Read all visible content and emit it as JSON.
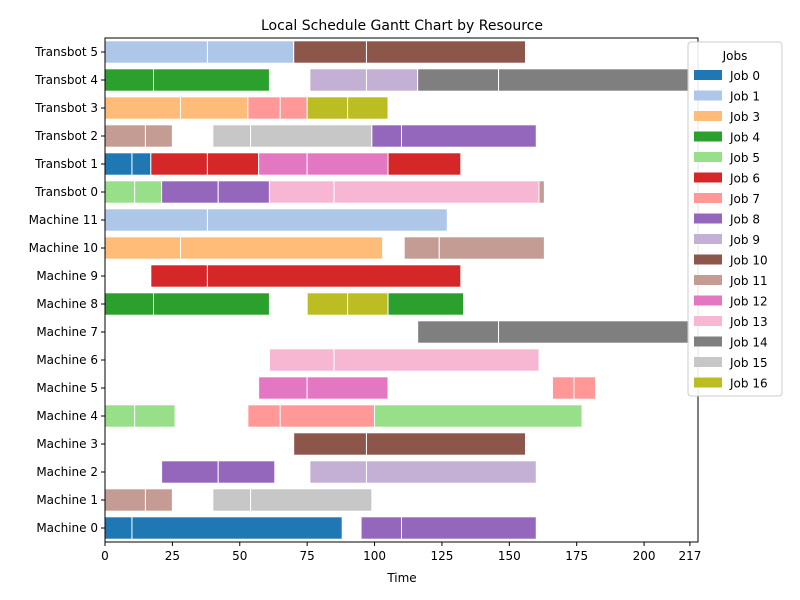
{
  "chart_data": {
    "type": "gantt",
    "title": "Local Schedule Gantt Chart by Resource",
    "xlabel": "Time",
    "ylabel": "",
    "xlim": [
      0,
      220
    ],
    "xticks": [
      0,
      25,
      50,
      75,
      100,
      125,
      150,
      175,
      200,
      217
    ],
    "grid": false,
    "legend": {
      "title": "Jobs",
      "placement": "upper-right"
    },
    "resources": [
      "Machine 0",
      "Machine 1",
      "Machine 2",
      "Machine 3",
      "Machine 4",
      "Machine 5",
      "Machine 6",
      "Machine 7",
      "Machine 8",
      "Machine 9",
      "Machine 10",
      "Machine 11",
      "Transbot 0",
      "Transbot 1",
      "Transbot 2",
      "Transbot 3",
      "Transbot 4",
      "Transbot 5"
    ],
    "jobs": [
      {
        "name": "Job 0",
        "color": "#1f77b4"
      },
      {
        "name": "Job 1",
        "color": "#aec7e8"
      },
      {
        "name": "Job 3",
        "color": "#ffbb78"
      },
      {
        "name": "Job 4",
        "color": "#2ca02c"
      },
      {
        "name": "Job 5",
        "color": "#98df8a"
      },
      {
        "name": "Job 6",
        "color": "#d62728"
      },
      {
        "name": "Job 7",
        "color": "#ff9896"
      },
      {
        "name": "Job 8",
        "color": "#9467bd"
      },
      {
        "name": "Job 9",
        "color": "#c5b0d5"
      },
      {
        "name": "Job 10",
        "color": "#8c564b"
      },
      {
        "name": "Job 11",
        "color": "#c49c94"
      },
      {
        "name": "Job 12",
        "color": "#e377c2"
      },
      {
        "name": "Job 13",
        "color": "#f7b6d2"
      },
      {
        "name": "Job 14",
        "color": "#7f7f7f"
      },
      {
        "name": "Job 15",
        "color": "#c7c7c7"
      },
      {
        "name": "Job 16",
        "color": "#bcbd22"
      }
    ],
    "tasks": [
      {
        "resource": "Machine 0",
        "job": "Job 0",
        "start": 0,
        "end": 10
      },
      {
        "resource": "Machine 0",
        "job": "Job 0",
        "start": 10,
        "end": 88
      },
      {
        "resource": "Machine 0",
        "job": "Job 8",
        "start": 95,
        "end": 110
      },
      {
        "resource": "Machine 0",
        "job": "Job 8",
        "start": 110,
        "end": 160
      },
      {
        "resource": "Machine 1",
        "job": "Job 11",
        "start": 0,
        "end": 15
      },
      {
        "resource": "Machine 1",
        "job": "Job 11",
        "start": 15,
        "end": 25
      },
      {
        "resource": "Machine 1",
        "job": "Job 15",
        "start": 40,
        "end": 54
      },
      {
        "resource": "Machine 1",
        "job": "Job 15",
        "start": 54,
        "end": 99
      },
      {
        "resource": "Machine 2",
        "job": "Job 8",
        "start": 21,
        "end": 42
      },
      {
        "resource": "Machine 2",
        "job": "Job 8",
        "start": 42,
        "end": 63
      },
      {
        "resource": "Machine 2",
        "job": "Job 9",
        "start": 76,
        "end": 97
      },
      {
        "resource": "Machine 2",
        "job": "Job 9",
        "start": 97,
        "end": 160
      },
      {
        "resource": "Machine 3",
        "job": "Job 10",
        "start": 70,
        "end": 97
      },
      {
        "resource": "Machine 3",
        "job": "Job 10",
        "start": 97,
        "end": 156
      },
      {
        "resource": "Machine 4",
        "job": "Job 5",
        "start": 0,
        "end": 11
      },
      {
        "resource": "Machine 4",
        "job": "Job 5",
        "start": 11,
        "end": 26
      },
      {
        "resource": "Machine 4",
        "job": "Job 7",
        "start": 53,
        "end": 65
      },
      {
        "resource": "Machine 4",
        "job": "Job 7",
        "start": 65,
        "end": 100
      },
      {
        "resource": "Machine 4",
        "job": "Job 5",
        "start": 100,
        "end": 177
      },
      {
        "resource": "Machine 5",
        "job": "Job 12",
        "start": 57,
        "end": 75
      },
      {
        "resource": "Machine 5",
        "job": "Job 12",
        "start": 75,
        "end": 105
      },
      {
        "resource": "Machine 5",
        "job": "Job 7",
        "start": 166,
        "end": 174
      },
      {
        "resource": "Machine 5",
        "job": "Job 7",
        "start": 174,
        "end": 182
      },
      {
        "resource": "Machine 6",
        "job": "Job 13",
        "start": 61,
        "end": 85
      },
      {
        "resource": "Machine 6",
        "job": "Job 13",
        "start": 85,
        "end": 161
      },
      {
        "resource": "Machine 7",
        "job": "Job 14",
        "start": 116,
        "end": 146
      },
      {
        "resource": "Machine 7",
        "job": "Job 14",
        "start": 146,
        "end": 217
      },
      {
        "resource": "Machine 8",
        "job": "Job 4",
        "start": 0,
        "end": 18
      },
      {
        "resource": "Machine 8",
        "job": "Job 4",
        "start": 18,
        "end": 61
      },
      {
        "resource": "Machine 8",
        "job": "Job 16",
        "start": 75,
        "end": 90
      },
      {
        "resource": "Machine 8",
        "job": "Job 16",
        "start": 90,
        "end": 105
      },
      {
        "resource": "Machine 8",
        "job": "Job 4",
        "start": 105,
        "end": 133
      },
      {
        "resource": "Machine 9",
        "job": "Job 6",
        "start": 17,
        "end": 38
      },
      {
        "resource": "Machine 9",
        "job": "Job 6",
        "start": 38,
        "end": 132
      },
      {
        "resource": "Machine 10",
        "job": "Job 3",
        "start": 0,
        "end": 28
      },
      {
        "resource": "Machine 10",
        "job": "Job 3",
        "start": 28,
        "end": 103
      },
      {
        "resource": "Machine 10",
        "job": "Job 11",
        "start": 111,
        "end": 124
      },
      {
        "resource": "Machine 10",
        "job": "Job 11",
        "start": 124,
        "end": 163
      },
      {
        "resource": "Machine 11",
        "job": "Job 1",
        "start": 0,
        "end": 38
      },
      {
        "resource": "Machine 11",
        "job": "Job 1",
        "start": 38,
        "end": 127
      },
      {
        "resource": "Transbot 0",
        "job": "Job 5",
        "start": 0,
        "end": 11
      },
      {
        "resource": "Transbot 0",
        "job": "Job 5",
        "start": 11,
        "end": 21
      },
      {
        "resource": "Transbot 0",
        "job": "Job 8",
        "start": 21,
        "end": 42
      },
      {
        "resource": "Transbot 0",
        "job": "Job 8",
        "start": 42,
        "end": 61
      },
      {
        "resource": "Transbot 0",
        "job": "Job 13",
        "start": 61,
        "end": 85
      },
      {
        "resource": "Transbot 0",
        "job": "Job 13",
        "start": 85,
        "end": 161
      },
      {
        "resource": "Transbot 0",
        "job": "Job 11",
        "start": 161,
        "end": 163
      },
      {
        "resource": "Transbot 1",
        "job": "Job 0",
        "start": 0,
        "end": 10
      },
      {
        "resource": "Transbot 1",
        "job": "Job 0",
        "start": 10,
        "end": 17
      },
      {
        "resource": "Transbot 1",
        "job": "Job 6",
        "start": 17,
        "end": 38
      },
      {
        "resource": "Transbot 1",
        "job": "Job 6",
        "start": 38,
        "end": 57
      },
      {
        "resource": "Transbot 1",
        "job": "Job 12",
        "start": 57,
        "end": 75
      },
      {
        "resource": "Transbot 1",
        "job": "Job 12",
        "start": 75,
        "end": 105
      },
      {
        "resource": "Transbot 1",
        "job": "Job 6",
        "start": 105,
        "end": 132
      },
      {
        "resource": "Transbot 2",
        "job": "Job 11",
        "start": 0,
        "end": 15
      },
      {
        "resource": "Transbot 2",
        "job": "Job 11",
        "start": 15,
        "end": 25
      },
      {
        "resource": "Transbot 2",
        "job": "Job 15",
        "start": 40,
        "end": 54
      },
      {
        "resource": "Transbot 2",
        "job": "Job 15",
        "start": 54,
        "end": 99
      },
      {
        "resource": "Transbot 2",
        "job": "Job 8",
        "start": 99,
        "end": 110
      },
      {
        "resource": "Transbot 2",
        "job": "Job 8",
        "start": 110,
        "end": 160
      },
      {
        "resource": "Transbot 3",
        "job": "Job 3",
        "start": 0,
        "end": 28
      },
      {
        "resource": "Transbot 3",
        "job": "Job 3",
        "start": 28,
        "end": 53
      },
      {
        "resource": "Transbot 3",
        "job": "Job 7",
        "start": 53,
        "end": 65
      },
      {
        "resource": "Transbot 3",
        "job": "Job 7",
        "start": 65,
        "end": 75
      },
      {
        "resource": "Transbot 3",
        "job": "Job 16",
        "start": 75,
        "end": 90
      },
      {
        "resource": "Transbot 3",
        "job": "Job 16",
        "start": 90,
        "end": 105
      },
      {
        "resource": "Transbot 4",
        "job": "Job 4",
        "start": 0,
        "end": 18
      },
      {
        "resource": "Transbot 4",
        "job": "Job 4",
        "start": 18,
        "end": 61
      },
      {
        "resource": "Transbot 4",
        "job": "Job 9",
        "start": 76,
        "end": 97
      },
      {
        "resource": "Transbot 4",
        "job": "Job 9",
        "start": 97,
        "end": 116
      },
      {
        "resource": "Transbot 4",
        "job": "Job 14",
        "start": 116,
        "end": 146
      },
      {
        "resource": "Transbot 4",
        "job": "Job 14",
        "start": 146,
        "end": 217
      },
      {
        "resource": "Transbot 5",
        "job": "Job 1",
        "start": 0,
        "end": 38
      },
      {
        "resource": "Transbot 5",
        "job": "Job 1",
        "start": 38,
        "end": 70
      },
      {
        "resource": "Transbot 5",
        "job": "Job 10",
        "start": 70,
        "end": 97
      },
      {
        "resource": "Transbot 5",
        "job": "Job 10",
        "start": 97,
        "end": 156
      }
    ]
  }
}
